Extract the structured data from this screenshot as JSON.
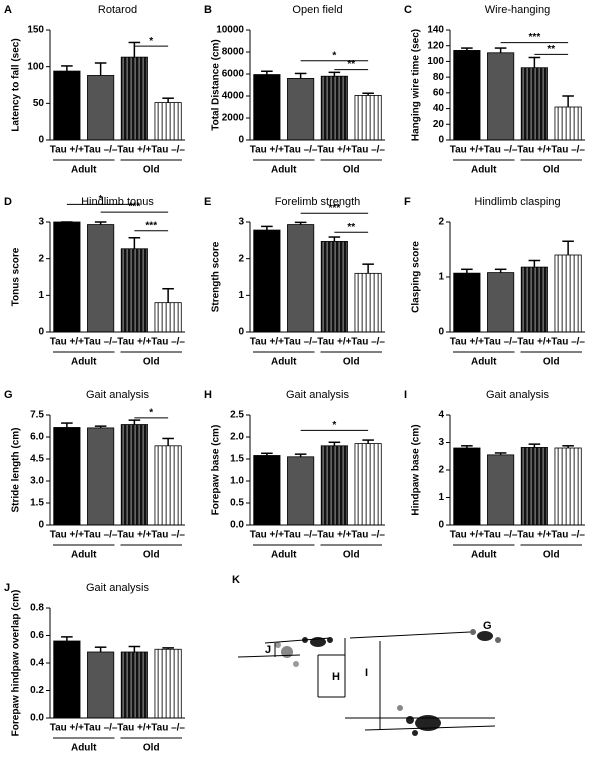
{
  "chart_data": [
    {
      "type": "bar",
      "letter": "A",
      "title": "Rotarod",
      "ylabel": "Latency to fall (sec)",
      "categories": [
        "Tau +/+",
        "Tau –/–",
        "Tau +/+",
        "Tau –/–"
      ],
      "groups": [
        "Adult",
        "Old"
      ],
      "values": [
        94,
        88,
        113,
        51
      ],
      "errors": [
        7,
        17,
        20,
        6
      ],
      "ylim": [
        0,
        150
      ],
      "yticks": [
        0,
        50,
        100,
        150
      ],
      "significance": [
        {
          "label": "*",
          "from": 2,
          "to": 3,
          "y": 128
        }
      ]
    },
    {
      "type": "bar",
      "letter": "B",
      "title": "Open field",
      "ylabel": "Total Distance (cm)",
      "categories": [
        "Tau +/+",
        "Tau –/–",
        "Tau +/+",
        "Tau –/–"
      ],
      "groups": [
        "Adult",
        "Old"
      ],
      "values": [
        5950,
        5600,
        5800,
        4050
      ],
      "errors": [
        300,
        450,
        350,
        200
      ],
      "ylim": [
        0,
        10000
      ],
      "yticks": [
        0,
        2000,
        4000,
        6000,
        8000,
        10000
      ],
      "significance": [
        {
          "label": "*",
          "from": 1,
          "to": 3,
          "y": 7200
        },
        {
          "label": "**",
          "from": 2,
          "to": 3,
          "y": 6400
        }
      ]
    },
    {
      "type": "bar",
      "letter": "C",
      "title": "Wire-hanging",
      "ylabel": "Hanging wire time (sec)",
      "categories": [
        "Tau +/+",
        "Tau –/–",
        "Tau +/+",
        "Tau –/–"
      ],
      "groups": [
        "Adult",
        "Old"
      ],
      "values": [
        114,
        111,
        92,
        42
      ],
      "errors": [
        3,
        6,
        13,
        14
      ],
      "ylim": [
        0,
        140
      ],
      "yticks": [
        0,
        20,
        40,
        60,
        80,
        100,
        120,
        140
      ],
      "significance": [
        {
          "label": "***",
          "from": 1,
          "to": 3,
          "y": 124
        },
        {
          "label": "**",
          "from": 2,
          "to": 3,
          "y": 109
        }
      ]
    },
    {
      "type": "bar",
      "letter": "D",
      "title": "Hindlimb tonus",
      "ylabel": "Tonus score",
      "categories": [
        "Tau +/+",
        "Tau –/–",
        "Tau +/+",
        "Tau –/–"
      ],
      "groups": [
        "Adult",
        "Old"
      ],
      "values": [
        3,
        2.93,
        2.27,
        0.8
      ],
      "errors": [
        0,
        0.07,
        0.3,
        0.38
      ],
      "ylim": [
        0,
        3
      ],
      "yticks": [
        0,
        1,
        2,
        3
      ],
      "significance": [
        {
          "label": "*",
          "from": 0,
          "to": 2,
          "y": 3.48
        },
        {
          "label": "***",
          "from": 1,
          "to": 3,
          "y": 3.27
        },
        {
          "label": "***",
          "from": 2,
          "to": 3,
          "y": 2.76
        }
      ]
    },
    {
      "type": "bar",
      "letter": "E",
      "title": "Forelimb strength",
      "ylabel": "Strength score",
      "categories": [
        "Tau +/+",
        "Tau –/–",
        "Tau +/+",
        "Tau –/–"
      ],
      "groups": [
        "Adult",
        "Old"
      ],
      "values": [
        2.78,
        2.93,
        2.47,
        1.6
      ],
      "errors": [
        0.1,
        0.06,
        0.12,
        0.25
      ],
      "ylim": [
        0,
        3
      ],
      "yticks": [
        0,
        1,
        2,
        3
      ],
      "significance": [
        {
          "label": "***",
          "from": 1,
          "to": 3,
          "y": 3.24
        },
        {
          "label": "**",
          "from": 2,
          "to": 3,
          "y": 2.72
        }
      ]
    },
    {
      "type": "bar",
      "letter": "F",
      "title": "Hindlimb clasping",
      "ylabel": "Clasping score",
      "categories": [
        "Tau +/+",
        "Tau –/–",
        "Tau +/+",
        "Tau –/–"
      ],
      "groups": [
        "Adult",
        "Old"
      ],
      "values": [
        1.07,
        1.08,
        1.18,
        1.4
      ],
      "errors": [
        0.07,
        0.06,
        0.12,
        0.25
      ],
      "ylim": [
        0,
        2
      ],
      "yticks": [
        0,
        1,
        2
      ],
      "significance": []
    },
    {
      "type": "bar",
      "letter": "G",
      "title": "Gait analysis",
      "ylabel": "Stride length (cm)",
      "categories": [
        "Tau +/+",
        "Tau –/–",
        "Tau +/+",
        "Tau –/–"
      ],
      "groups": [
        "Adult",
        "Old"
      ],
      "values": [
        6.65,
        6.62,
        6.85,
        5.4
      ],
      "errors": [
        0.3,
        0.12,
        0.3,
        0.5
      ],
      "ylim": [
        0,
        7.5
      ],
      "yticks": [
        0,
        1.5,
        {
          "value": 3,
          "label": "3.0"
        },
        4.5,
        {
          "value": 6,
          "label": "6.0"
        },
        7.5
      ],
      "significance": [
        {
          "label": "*",
          "from": 2,
          "to": 3,
          "y": 7.3
        }
      ]
    },
    {
      "type": "bar",
      "letter": "H",
      "title": "Gait analysis",
      "ylabel": "Forepaw base (cm)",
      "categories": [
        "Tau +/+",
        "Tau –/–",
        "Tau +/+",
        "Tau –/–"
      ],
      "groups": [
        "Adult",
        "Old"
      ],
      "values": [
        1.58,
        1.55,
        1.8,
        1.85
      ],
      "errors": [
        0.05,
        0.06,
        0.08,
        0.08
      ],
      "ylim": [
        0,
        2.5
      ],
      "yticks": [
        {
          "value": 0,
          "label": "0.0"
        },
        0.5,
        {
          "value": 1,
          "label": "1.0"
        },
        1.5,
        {
          "value": 2,
          "label": "2.0"
        },
        2.5
      ],
      "significance": [
        {
          "label": "*",
          "from": 1,
          "to": 3,
          "y": 2.15
        }
      ]
    },
    {
      "type": "bar",
      "letter": "I",
      "title": "Gait analysis",
      "ylabel": "Hindpaw base (cm)",
      "categories": [
        "Tau +/+",
        "Tau –/–",
        "Tau +/+",
        "Tau –/–"
      ],
      "groups": [
        "Adult",
        "Old"
      ],
      "values": [
        2.8,
        2.55,
        2.82,
        2.8
      ],
      "errors": [
        0.08,
        0.07,
        0.12,
        0.08
      ],
      "ylim": [
        0,
        4
      ],
      "yticks": [
        0,
        1,
        2,
        3,
        4
      ],
      "significance": []
    },
    {
      "type": "bar",
      "letter": "J",
      "title": "Gait analysis",
      "ylabel": "Forepaw hindpaw overlap (cm)",
      "categories": [
        "Tau +/+",
        "Tau –/–",
        "Tau +/+",
        "Tau –/–"
      ],
      "groups": [
        "Adult",
        "Old"
      ],
      "values": [
        0.56,
        0.48,
        0.48,
        0.5
      ],
      "errors": [
        0.03,
        0.035,
        0.04,
        0.01
      ],
      "ylim": [
        0,
        0.8
      ],
      "yticks": [
        {
          "value": 0,
          "label": "0.0"
        },
        0.2,
        0.4,
        0.6,
        0.8
      ],
      "significance": []
    }
  ],
  "bar_fills": [
    "#000000",
    "#555555",
    "url(#stripes-dark)",
    "url(#stripes-light)"
  ],
  "panel_k": {
    "letter": "K",
    "labels": [
      "G",
      "H",
      "I",
      "J"
    ]
  }
}
